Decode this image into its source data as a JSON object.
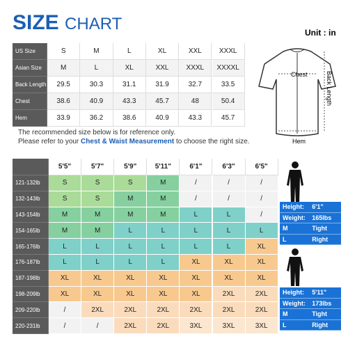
{
  "header": {
    "title_bold": "SIZE",
    "title": "CHART",
    "unit": "Unit : in"
  },
  "measure_table": {
    "rows": [
      [
        "US Size",
        "S",
        "M",
        "L",
        "XL",
        "XXL",
        "XXXL"
      ],
      [
        "Asian Size",
        "M",
        "L",
        "XL",
        "XXL",
        "XXXL",
        "XXXXL"
      ],
      [
        "Back Length",
        "29.5",
        "30.3",
        "31.1",
        "31.9",
        "32.7",
        "33.5"
      ],
      [
        "Chest",
        "38.6",
        "40.9",
        "43.3",
        "45.7",
        "48",
        "50.4"
      ],
      [
        "Hem",
        "33.9",
        "36.2",
        "38.6",
        "40.9",
        "43.3",
        "45.7"
      ]
    ]
  },
  "diagram": {
    "chest": "Chest",
    "back_length": "Back Length",
    "hem": "Hem"
  },
  "note": {
    "line1": "The recommended size below is for reference only.",
    "line2_pre": "Please refer to your",
    "line2_em": "Chest & Waist Measurement",
    "line2_post": "to choose the right size."
  },
  "fit_table": {
    "heights": [
      "5'5\"",
      "5'7\"",
      "5'9\"",
      "5'11\"",
      "6'1\"",
      "6'3\"",
      "6'5\""
    ],
    "rows": [
      {
        "weight": "121-132lb",
        "sizes": [
          "S",
          "S",
          "S",
          "M",
          "/",
          "/",
          "/"
        ]
      },
      {
        "weight": "132-143lb",
        "sizes": [
          "S",
          "S",
          "M",
          "M",
          "/",
          "/",
          "/"
        ]
      },
      {
        "weight": "143-154lb",
        "sizes": [
          "M",
          "M",
          "M",
          "M",
          "L",
          "L",
          "/"
        ]
      },
      {
        "weight": "154-165lb",
        "sizes": [
          "M",
          "M",
          "L",
          "L",
          "L",
          "L",
          "L"
        ]
      },
      {
        "weight": "165-176lb",
        "sizes": [
          "L",
          "L",
          "L",
          "L",
          "L",
          "L",
          "XL"
        ]
      },
      {
        "weight": "176-187lb",
        "sizes": [
          "L",
          "L",
          "L",
          "L",
          "XL",
          "XL",
          "XL"
        ]
      },
      {
        "weight": "187-198lb",
        "sizes": [
          "XL",
          "XL",
          "XL",
          "XL",
          "XL",
          "XL",
          "XL"
        ]
      },
      {
        "weight": "198-209lb",
        "sizes": [
          "XL",
          "XL",
          "XL",
          "XL",
          "XL",
          "2XL",
          "2XL"
        ]
      },
      {
        "weight": "209-220lb",
        "sizes": [
          "/",
          "2XL",
          "2XL",
          "2XL",
          "2XL",
          "2XL",
          "2XL"
        ]
      },
      {
        "weight": "220-231lb",
        "sizes": [
          "/",
          "/",
          "2XL",
          "2XL",
          "3XL",
          "3XL",
          "3XL"
        ]
      }
    ],
    "size_colors": {
      "S": "#aadb98",
      "M": "#86d0a0",
      "L": "#7fd0c8",
      "XL": "#f7c98f",
      "2XL": "#fadcbc",
      "3XL": "#fbe6cf",
      "/": "#f2f2f2"
    }
  },
  "models": [
    {
      "rows": [
        [
          "Height:",
          "6'1\""
        ],
        [
          "Weight:",
          "165lbs"
        ],
        [
          "M",
          "Tight"
        ],
        [
          "L",
          "Right"
        ]
      ]
    },
    {
      "rows": [
        [
          "Height:",
          "5'11\""
        ],
        [
          "Weight:",
          "173lbs"
        ],
        [
          "M",
          "Tight"
        ],
        [
          "L",
          "Right"
        ]
      ]
    }
  ]
}
